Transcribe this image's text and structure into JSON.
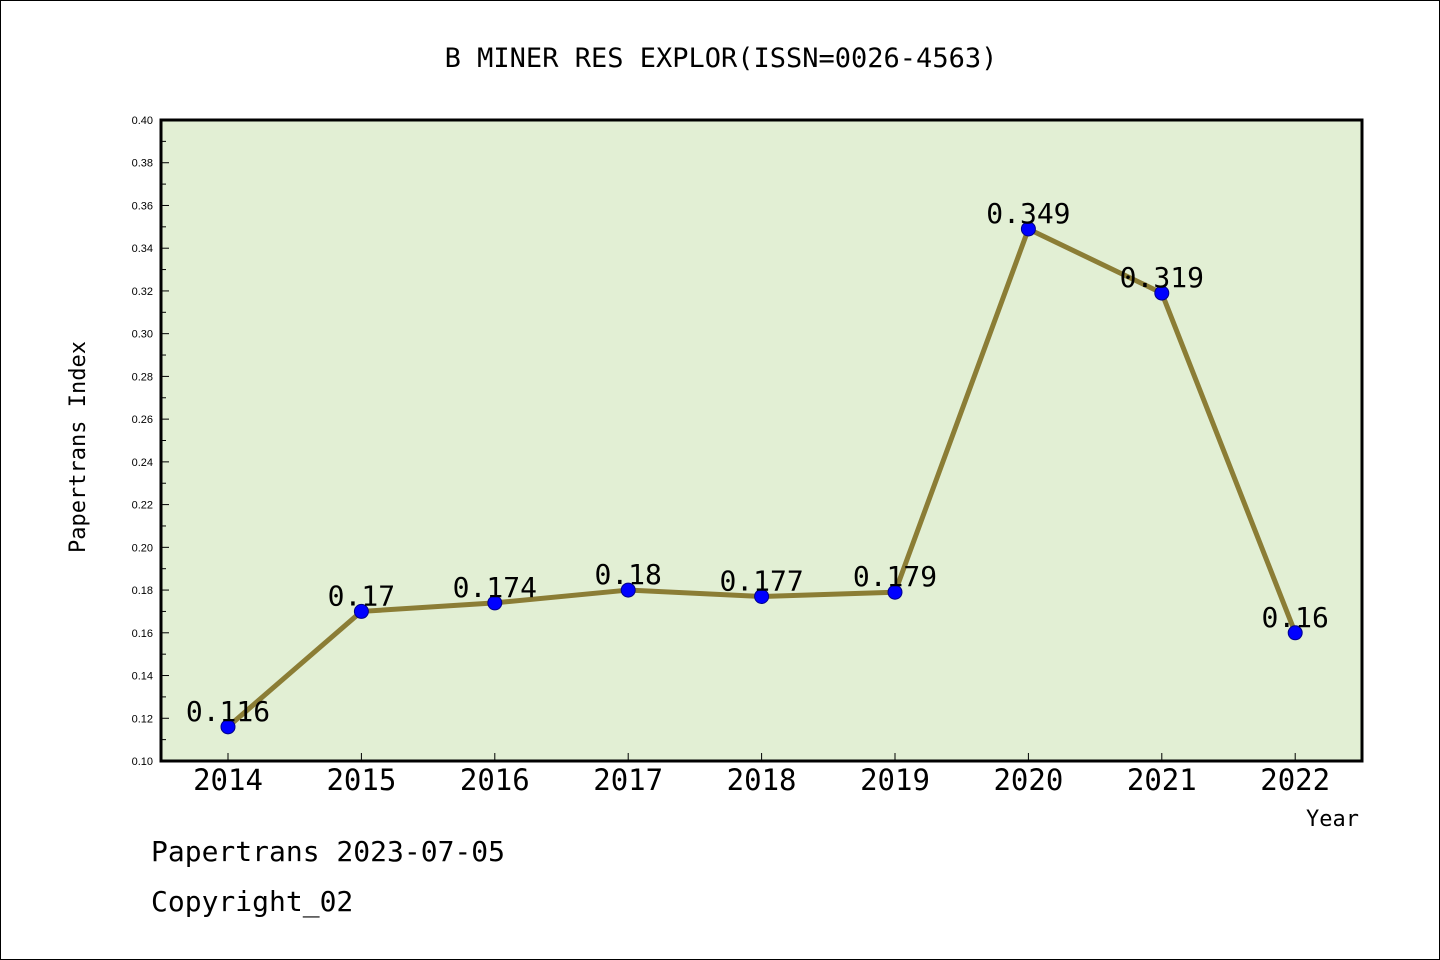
{
  "chart_data": {
    "type": "line",
    "title": "B MINER RES EXPLOR(ISSN=0026-4563)",
    "xlabel": "Year",
    "ylabel": "Papertrans Index",
    "categories": [
      "2014",
      "2015",
      "2016",
      "2017",
      "2018",
      "2019",
      "2020",
      "2021",
      "2022"
    ],
    "values": [
      0.116,
      0.17,
      0.174,
      0.18,
      0.177,
      0.179,
      0.349,
      0.319,
      0.16
    ],
    "data_labels": [
      "0.116",
      "0.17",
      "0.174",
      "0.18",
      "0.177",
      "0.179",
      "0.349",
      "0.319",
      "0.16"
    ],
    "yticks": [
      "0.10",
      "0.12",
      "0.14",
      "0.16",
      "0.18",
      "0.20",
      "0.22",
      "0.24",
      "0.26",
      "0.28",
      "0.30",
      "0.32",
      "0.34",
      "0.36",
      "0.38",
      "0.40"
    ],
    "ylim": [
      0.1,
      0.4
    ],
    "grid": false,
    "colors": {
      "plot_background": "#e2efd4",
      "line": "#8b7d35",
      "marker": "#0000ff"
    }
  },
  "footer": {
    "line1": "Papertrans 2023-07-05",
    "line2": "Copyright_02"
  }
}
